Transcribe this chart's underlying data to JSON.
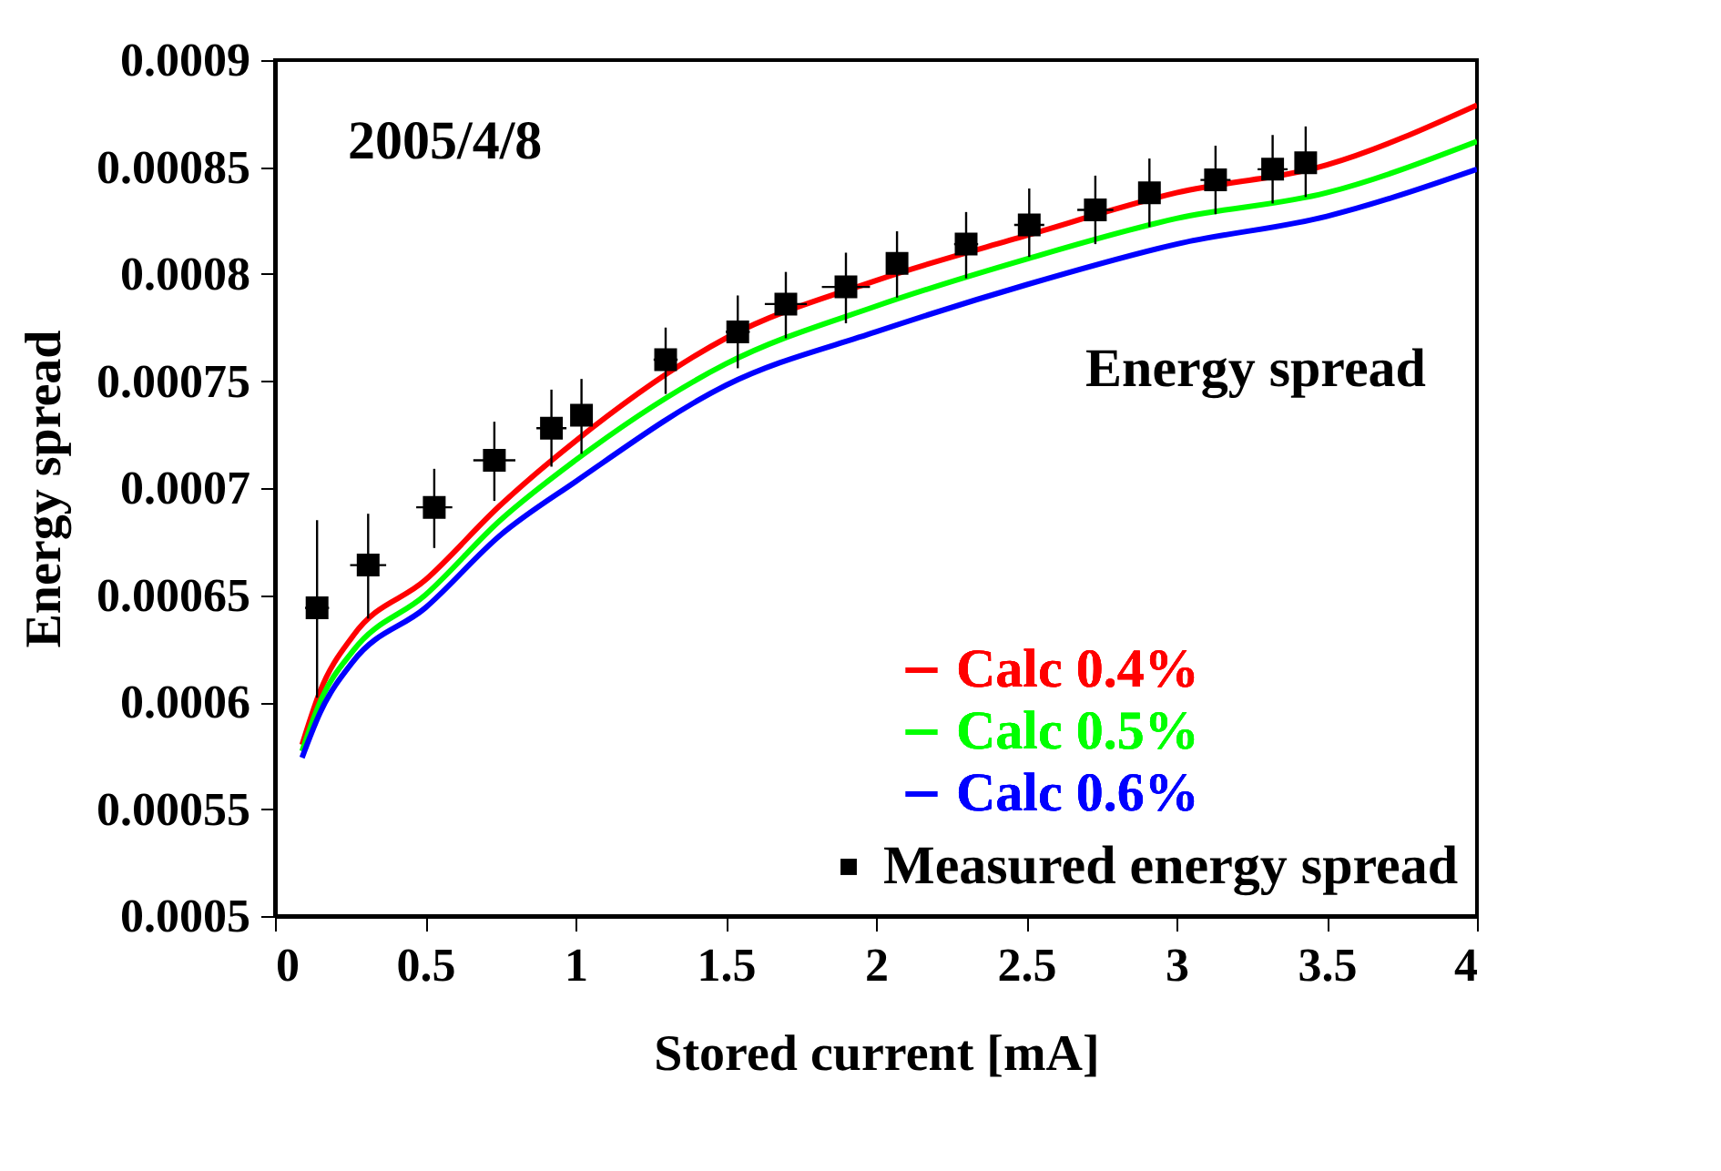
{
  "chart_data": {
    "type": "line",
    "xlabel": "Stored current [mA]",
    "ylabel": "Energy spread",
    "annotations": [
      "2005/4/8",
      "Energy spread"
    ],
    "xlim": [
      0,
      4
    ],
    "ylim": [
      0.0005,
      0.0009
    ],
    "xticks": [
      0,
      0.5,
      1,
      1.5,
      2,
      2.5,
      3,
      3.5,
      4
    ],
    "yticks": [
      0.0005,
      0.00055,
      0.0006,
      0.00065,
      0.0007,
      0.00075,
      0.0008,
      0.00085,
      0.0009
    ],
    "legend": "bottom right",
    "grid": false,
    "series": [
      {
        "name": "Calc 0.4%",
        "color": "#ff0000",
        "x": [
          0.09,
          0.15,
          0.26,
          0.5,
          0.75,
          1,
          1.5,
          2,
          2.5,
          3,
          3.5,
          4
        ],
        "values": [
          0.00058,
          0.000605,
          0.000631,
          0.000657,
          0.000692,
          0.000722,
          0.00077,
          0.000797,
          0.000818,
          0.000838,
          0.000851,
          0.000879
        ]
      },
      {
        "name": "Calc 0.5%",
        "color": "#00ff00",
        "x": [
          0.09,
          0.15,
          0.26,
          0.5,
          0.75,
          1,
          1.5,
          2,
          2.5,
          3,
          3.5,
          4
        ],
        "values": [
          0.000577,
          0.0006,
          0.000624,
          0.00065,
          0.000685,
          0.000713,
          0.000758,
          0.000785,
          0.000807,
          0.000826,
          0.000838,
          0.000862
        ]
      },
      {
        "name": "Calc 0.6%",
        "color": "#0000ff",
        "x": [
          0.09,
          0.15,
          0.26,
          0.5,
          0.75,
          1,
          1.5,
          2,
          2.5,
          3,
          3.5,
          4
        ],
        "values": [
          0.000574,
          0.000595,
          0.000619,
          0.000644,
          0.000678,
          0.000703,
          0.000748,
          0.000773,
          0.000795,
          0.000814,
          0.000827,
          0.000849
        ]
      },
      {
        "name": "Measured energy spread",
        "type": "scatter",
        "marker": "square",
        "color": "#000000",
        "x": [
          0.14,
          0.31,
          0.53,
          0.73,
          0.92,
          1.02,
          1.3,
          1.54,
          1.7,
          1.9,
          2.07,
          2.3,
          2.51,
          2.73,
          2.91,
          3.13,
          3.32,
          3.43
        ],
        "values": [
          0.000644,
          0.000664,
          0.000691,
          0.000713,
          0.000728,
          0.000734,
          0.00076,
          0.000773,
          0.000786,
          0.000794,
          0.000805,
          0.000814,
          0.000823,
          0.00083,
          0.000838,
          0.000844,
          0.000849,
          0.000852
        ],
        "errors": [
          [
            0.000602,
            0.000685
          ],
          [
            0.000639,
            0.000688
          ],
          [
            0.000672,
            0.000709
          ],
          [
            0.000694,
            0.000731
          ],
          [
            0.00071,
            0.000746
          ],
          [
            0.000716,
            0.000751
          ],
          [
            0.000744,
            0.000775
          ],
          [
            0.000756,
            0.00079
          ],
          [
            0.00077,
            0.000801
          ],
          [
            0.000777,
            0.00081
          ],
          [
            0.000789,
            0.00082
          ],
          [
            0.000798,
            0.000829
          ],
          [
            0.000808,
            0.00084
          ],
          [
            0.000814,
            0.000846
          ],
          [
            0.000822,
            0.000854
          ],
          [
            0.000828,
            0.00086
          ],
          [
            0.000833,
            0.000865
          ],
          [
            0.000836,
            0.000869
          ]
        ],
        "xerrors": [
          0.04,
          0.06,
          0.06,
          0.07,
          0.05,
          null,
          0.04,
          0.04,
          0.07,
          0.08,
          null,
          0.04,
          0.05,
          0.06,
          null,
          0.05,
          0.05,
          null
        ]
      }
    ]
  }
}
